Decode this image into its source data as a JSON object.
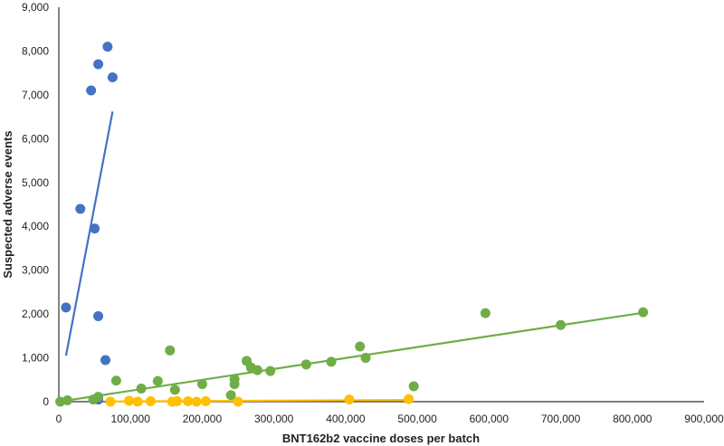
{
  "chart_data": {
    "type": "scatter",
    "xlabel": "BNT162b2 vaccine doses per batch",
    "ylabel": "Suspected adverse events",
    "xlim": [
      0,
      900000
    ],
    "ylim": [
      0,
      9000
    ],
    "x_ticks": [
      0,
      100000,
      200000,
      300000,
      400000,
      500000,
      600000,
      700000,
      800000,
      900000
    ],
    "y_ticks": [
      0,
      1000,
      2000,
      3000,
      4000,
      5000,
      6000,
      7000,
      8000,
      9000
    ],
    "x_tick_labels": [
      "0",
      "100,000",
      "200,000",
      "300,000",
      "400,000",
      "500,000",
      "600,000",
      "700,000",
      "800,000",
      "900,000"
    ],
    "y_tick_labels": [
      "0",
      "1,000",
      "2,000",
      "3,000",
      "4,000",
      "5,000",
      "6,000",
      "7,000",
      "8,000",
      "9,000"
    ],
    "grid": false,
    "legend": "none",
    "series": [
      {
        "color": "#4472c4",
        "points": [
          [
            10000,
            2150
          ],
          [
            30000,
            4400
          ],
          [
            45000,
            7100
          ],
          [
            50000,
            3950
          ],
          [
            55000,
            1950
          ],
          [
            55000,
            7700
          ],
          [
            65000,
            950
          ],
          [
            68000,
            8100
          ],
          [
            75000,
            7400
          ],
          [
            55000,
            50
          ]
        ],
        "trendline": [
          [
            10000,
            1050
          ],
          [
            75000,
            6620
          ]
        ]
      },
      {
        "color": "#70ad47",
        "points": [
          [
            2000,
            0
          ],
          [
            12000,
            30
          ],
          [
            48000,
            50
          ],
          [
            55000,
            110
          ],
          [
            80000,
            480
          ],
          [
            115000,
            300
          ],
          [
            138000,
            470
          ],
          [
            155000,
            1170
          ],
          [
            162000,
            270
          ],
          [
            200000,
            400
          ],
          [
            240000,
            150
          ],
          [
            245000,
            400
          ],
          [
            245000,
            510
          ],
          [
            262000,
            930
          ],
          [
            268000,
            780
          ],
          [
            277000,
            720
          ],
          [
            295000,
            700
          ],
          [
            345000,
            850
          ],
          [
            380000,
            910
          ],
          [
            420000,
            1260
          ],
          [
            428000,
            1000
          ],
          [
            495000,
            350
          ],
          [
            595000,
            2020
          ],
          [
            700000,
            1750
          ],
          [
            815000,
            2040
          ]
        ],
        "trendline": [
          [
            0,
            0
          ],
          [
            815000,
            2030
          ]
        ]
      },
      {
        "color": "#ffc000",
        "points": [
          [
            72000,
            0
          ],
          [
            98000,
            20
          ],
          [
            110000,
            0
          ],
          [
            128000,
            10
          ],
          [
            158000,
            0
          ],
          [
            165000,
            10
          ],
          [
            180000,
            10
          ],
          [
            192000,
            0
          ],
          [
            205000,
            10
          ],
          [
            250000,
            0
          ],
          [
            405000,
            50
          ],
          [
            488000,
            60
          ]
        ],
        "trendline": [
          [
            72000,
            5
          ],
          [
            488000,
            40
          ]
        ]
      }
    ]
  }
}
